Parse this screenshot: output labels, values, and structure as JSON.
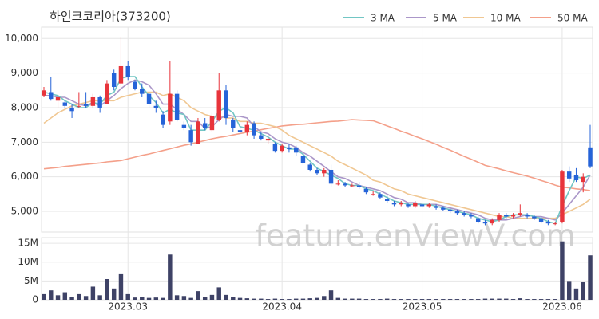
{
  "chart_data": {
    "type": "candlestick",
    "title": "하인크코리아(373200)",
    "watermark": "feature.enViewV.com",
    "legend": "top-right",
    "grid": true,
    "up_color": "#e8343b",
    "down_color": "#2563d8",
    "categories": [
      null,
      null,
      null,
      null,
      null,
      null,
      null,
      null,
      null,
      null,
      null,
      null,
      "2023.03",
      null,
      null,
      null,
      null,
      null,
      null,
      null,
      null,
      null,
      null,
      null,
      null,
      null,
      null,
      null,
      null,
      null,
      null,
      null,
      null,
      null,
      "2023.04",
      null,
      null,
      null,
      null,
      null,
      null,
      null,
      null,
      null,
      null,
      null,
      null,
      null,
      null,
      null,
      null,
      null,
      null,
      null,
      "2023.05",
      null,
      null,
      null,
      null,
      null,
      null,
      null,
      null,
      null,
      null,
      null,
      null,
      null,
      null,
      null,
      null,
      null,
      null,
      null,
      "2023.06",
      null,
      null,
      null,
      null
    ],
    "open": [
      8350,
      8450,
      8200,
      8150,
      8000,
      8050,
      8100,
      8050,
      8300,
      8100,
      9000,
      8700,
      9200,
      8750,
      8550,
      8400,
      8050,
      7800,
      7600,
      8400,
      7500,
      7350,
      6950,
      7550,
      7350,
      7650,
      8500,
      7650,
      7350,
      7300,
      7550,
      7200,
      7050,
      6950,
      6750,
      6850,
      6850,
      6600,
      6350,
      6200,
      6100,
      6200,
      5800,
      5800,
      5750,
      5750,
      5650,
      5500,
      5500,
      5350,
      5250,
      5200,
      5200,
      5150,
      5200,
      5150,
      5150,
      5100,
      5050,
      5000,
      4950,
      4900,
      4800,
      4700,
      4650,
      4750,
      4900,
      4850,
      4900,
      4900,
      4850,
      4800,
      4700,
      4650,
      4700,
      6150,
      6050,
      5850,
      6850
    ],
    "high": [
      8600,
      8900,
      8350,
      8200,
      8100,
      8450,
      8450,
      8400,
      8350,
      8800,
      9100,
      10050,
      9350,
      8800,
      8700,
      8450,
      8200,
      7900,
      9350,
      8500,
      7600,
      7500,
      7700,
      7700,
      7850,
      9000,
      8650,
      7700,
      7500,
      7600,
      7600,
      7300,
      7200,
      7000,
      6950,
      6950,
      6900,
      6650,
      6400,
      6250,
      6250,
      6350,
      5900,
      5850,
      5800,
      5850,
      5700,
      5600,
      5550,
      5450,
      5300,
      5300,
      5250,
      5300,
      5250,
      5250,
      5200,
      5150,
      5100,
      5050,
      5000,
      4950,
      4850,
      4750,
      4800,
      4950,
      4950,
      4950,
      5200,
      4950,
      4900,
      4850,
      4750,
      4700,
      6200,
      6300,
      6250,
      6100,
      7500
    ],
    "low": [
      8300,
      8200,
      8000,
      8000,
      7700,
      8000,
      8000,
      8000,
      7850,
      8100,
      8500,
      8500,
      8800,
      8500,
      8300,
      8000,
      7850,
      7400,
      7500,
      7600,
      7350,
      6900,
      6950,
      7350,
      7300,
      7600,
      7500,
      7300,
      7250,
      7200,
      7100,
      7050,
      6950,
      6700,
      6700,
      6700,
      6600,
      6350,
      6150,
      6050,
      6000,
      5700,
      5750,
      5700,
      5700,
      5650,
      5500,
      5450,
      5350,
      5250,
      5150,
      5150,
      5100,
      5100,
      5100,
      5100,
      5050,
      5000,
      4950,
      4900,
      4850,
      4800,
      4650,
      4600,
      4600,
      4700,
      4800,
      4800,
      4850,
      4800,
      4750,
      4650,
      4600,
      4600,
      4650,
      5850,
      5850,
      5550,
      6250
    ],
    "close": [
      8500,
      8250,
      8300,
      8050,
      7900,
      8050,
      8050,
      8300,
      8000,
      8700,
      8600,
      9200,
      8900,
      8550,
      8400,
      8100,
      8000,
      7500,
      8400,
      7650,
      7400,
      7000,
      7600,
      7400,
      7750,
      8500,
      7700,
      7400,
      7300,
      7500,
      7200,
      7100,
      7100,
      6750,
      6900,
      6800,
      6700,
      6400,
      6200,
      6100,
      6200,
      5800,
      5800,
      5750,
      5750,
      5700,
      5550,
      5500,
      5400,
      5300,
      5200,
      5250,
      5150,
      5250,
      5150,
      5200,
      5100,
      5050,
      5000,
      4950,
      4900,
      4850,
      4700,
      4650,
      4750,
      4900,
      4850,
      4900,
      4950,
      4850,
      4800,
      4700,
      4650,
      4650,
      6150,
      5950,
      5900,
      6000,
      6300
    ],
    "ylim": [
      4400,
      10330
    ],
    "yticks": [
      {
        "value": 5000,
        "label": "5,000"
      },
      {
        "value": 6000,
        "label": "6,000"
      },
      {
        "value": 7000,
        "label": "7,000"
      },
      {
        "value": 8000,
        "label": "8,000"
      },
      {
        "value": 9000,
        "label": "9,000"
      },
      {
        "value": 10000,
        "label": "10,000"
      }
    ],
    "series": [
      {
        "name": "3 MA",
        "color": "#72c6c4",
        "values": [
          8450,
          8400,
          8350,
          8200,
          8100,
          8000,
          8000,
          8150,
          8100,
          8350,
          8450,
          8850,
          8900,
          8900,
          8600,
          8350,
          8150,
          7850,
          7950,
          7850,
          7800,
          7350,
          7350,
          7350,
          7600,
          7900,
          8000,
          7850,
          7450,
          7400,
          7350,
          7250,
          7150,
          7000,
          6900,
          6800,
          6800,
          6650,
          6450,
          6250,
          6150,
          6050,
          5950,
          5800,
          5750,
          5750,
          5650,
          5600,
          5500,
          5400,
          5300,
          5250,
          5200,
          5200,
          5200,
          5200,
          5150,
          5100,
          5050,
          5000,
          4950,
          4900,
          4800,
          4750,
          4700,
          4750,
          4850,
          4900,
          4900,
          4900,
          4850,
          4800,
          4700,
          4650,
          5150,
          5600,
          6000,
          5950,
          6050
        ]
      },
      {
        "name": "5 MA",
        "color": "#ab97c9",
        "values": [
          8350,
          8350,
          8300,
          8300,
          8200,
          8100,
          8050,
          8150,
          8050,
          8200,
          8350,
          8550,
          8700,
          8800,
          8750,
          8650,
          8400,
          8100,
          8100,
          7950,
          7800,
          7600,
          7600,
          7400,
          7450,
          7650,
          7800,
          7750,
          7750,
          7700,
          7450,
          7300,
          7250,
          7100,
          7000,
          6950,
          6850,
          6700,
          6600,
          6450,
          6300,
          6150,
          6000,
          5950,
          5850,
          5750,
          5700,
          5650,
          5600,
          5500,
          5400,
          5350,
          5250,
          5250,
          5200,
          5200,
          5200,
          5150,
          5100,
          5050,
          5000,
          4950,
          4900,
          4800,
          4750,
          4750,
          4750,
          4800,
          4850,
          4900,
          4850,
          4850,
          4800,
          4750,
          4950,
          5200,
          5450,
          5700,
          6050
        ]
      },
      {
        "name": "10 MA",
        "color": "#f0c792",
        "values": [
          7550,
          7700,
          7850,
          7950,
          8050,
          8100,
          8150,
          8200,
          8200,
          8200,
          8200,
          8300,
          8350,
          8400,
          8450,
          8450,
          8450,
          8350,
          8400,
          8300,
          8200,
          8000,
          7900,
          7800,
          7750,
          7750,
          7700,
          7700,
          7600,
          7600,
          7550,
          7550,
          7500,
          7450,
          7350,
          7200,
          7100,
          7000,
          6900,
          6800,
          6700,
          6600,
          6450,
          6350,
          6250,
          6150,
          6050,
          5900,
          5850,
          5750,
          5650,
          5600,
          5500,
          5450,
          5400,
          5350,
          5300,
          5250,
          5200,
          5150,
          5100,
          5050,
          5000,
          4950,
          4900,
          4850,
          4850,
          4800,
          4800,
          4800,
          4800,
          4800,
          4800,
          4800,
          4900,
          5000,
          5100,
          5200,
          5350
        ]
      },
      {
        "name": "50 MA",
        "color": "#f4a08a",
        "values": [
          6230,
          6250,
          6270,
          6300,
          6320,
          6340,
          6360,
          6380,
          6400,
          6430,
          6450,
          6470,
          6520,
          6570,
          6620,
          6660,
          6710,
          6760,
          6810,
          6860,
          6910,
          6950,
          7000,
          7050,
          7100,
          7140,
          7170,
          7210,
          7250,
          7290,
          7320,
          7360,
          7400,
          7430,
          7470,
          7490,
          7510,
          7520,
          7540,
          7560,
          7580,
          7600,
          7610,
          7630,
          7650,
          7640,
          7630,
          7620,
          7550,
          7470,
          7400,
          7320,
          7250,
          7170,
          7100,
          7020,
          6940,
          6850,
          6770,
          6680,
          6590,
          6510,
          6420,
          6330,
          6280,
          6230,
          6170,
          6120,
          6070,
          6020,
          5960,
          5890,
          5830,
          5760,
          5700,
          5680,
          5650,
          5630,
          5600
        ]
      }
    ],
    "volume": {
      "color": "#3e4266",
      "values": [
        1.5,
        2.5,
        1.2,
        2,
        0.8,
        1.5,
        1,
        3.5,
        1.2,
        5.5,
        3,
        7,
        1.5,
        0.6,
        0.8,
        0.5,
        0.6,
        0.5,
        12,
        1.2,
        1,
        0.5,
        2.3,
        0.8,
        1.3,
        3.3,
        1.3,
        0.7,
        0.5,
        0.4,
        0.3,
        0.3,
        0.2,
        0.3,
        0.2,
        0.2,
        0.3,
        0.3,
        0.4,
        0.5,
        1,
        2.5,
        0.5,
        0.3,
        0.3,
        0.3,
        0.2,
        0.2,
        0.2,
        0.3,
        0.2,
        0.2,
        0.2,
        0.2,
        0.2,
        0.2,
        0.2,
        0.2,
        0.2,
        0.2,
        0.2,
        0.2,
        0.2,
        0.3,
        0.3,
        0.3,
        0.3,
        0.2,
        0.4,
        0.2,
        0.2,
        0.2,
        0.2,
        0.2,
        15.5,
        5,
        3,
        4.8,
        11.8
      ],
      "ylim": [
        0,
        16.5
      ],
      "yticks": [
        0,
        {
          "value": 5,
          "label": "5M"
        },
        {
          "value": 10,
          "label": "10M"
        },
        {
          "value": 15,
          "label": "15M"
        }
      ]
    }
  }
}
